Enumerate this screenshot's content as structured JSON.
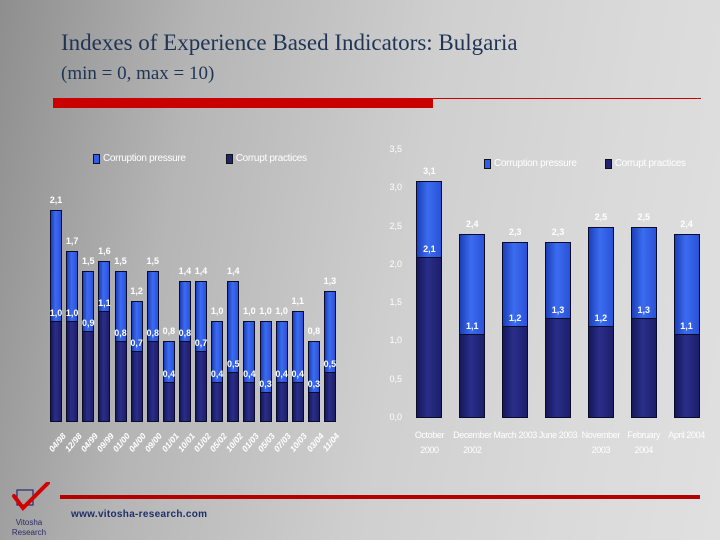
{
  "slide": {
    "title": "Indexes of Experience Based Indicators: Bulgaria",
    "subtitle": "(min = 0, max = 10)",
    "footer_url": "www.vitosha-research.com",
    "logo_line1": "Vitosha",
    "logo_line2": "Research",
    "colors": {
      "accent_red": "#c80000",
      "title_blue": "#1f3556",
      "series_light": "#2f5fe8",
      "series_dark": "#20236e"
    }
  },
  "chart_data": [
    {
      "type": "bar",
      "title": "",
      "legend": [
        "Corruption pressure",
        "Corrupt practices"
      ],
      "legend_position": "top",
      "categories": [
        "04/98",
        "12/98",
        "04/99",
        "09/99",
        "01/00",
        "04/00",
        "09/00",
        "01/01",
        "10/01",
        "01/02",
        "05/02",
        "10/02",
        "01/03",
        "05/03",
        "07/03",
        "10/03",
        "03/04",
        "11/04"
      ],
      "series": [
        {
          "name": "Corruption pressure",
          "values": [
            2.1,
            1.7,
            1.5,
            1.6,
            1.5,
            1.2,
            1.5,
            0.8,
            1.4,
            1.4,
            1.0,
            1.4,
            1.0,
            1.0,
            1.0,
            1.1,
            0.8,
            1.3
          ]
        },
        {
          "name": "Corrupt practices",
          "values": [
            1.0,
            1.0,
            0.9,
            1.1,
            0.8,
            0.7,
            0.8,
            0.4,
            0.8,
            0.7,
            0.4,
            0.5,
            0.4,
            0.3,
            0.4,
            0.4,
            0.3,
            0.5
          ]
        }
      ],
      "labels_pressure": [
        "2,1",
        "1,7",
        "1,5",
        "1,6",
        "1,5",
        "1,2",
        "1,5",
        "0,8",
        "1,4",
        "1,4",
        "1,0",
        "1,4",
        "1,0",
        "1,0",
        "1,0",
        "1,1",
        "0,8",
        "1,3"
      ],
      "labels_practices": [
        "1,0",
        "1,0",
        "0,9",
        "1,1",
        "0,8",
        "0,7",
        "0,8",
        "0,4",
        "0,8",
        "0,7",
        "0,4",
        "0,5",
        "0,4",
        "0,3",
        "0,4",
        "0,4",
        "0,3",
        "0,5"
      ],
      "xlabel": "",
      "ylabel": "",
      "ylim": [
        0,
        2.3
      ],
      "grid": false,
      "overlap": true
    },
    {
      "type": "bar",
      "title": "",
      "legend": [
        "Corruption pressure",
        "Corrupt practices"
      ],
      "legend_position": "top",
      "categories": [
        "October 2000",
        "December 2002",
        "March 2003",
        "June 2003",
        "November 2003",
        "February 2004",
        "April 2004"
      ],
      "category_lines": [
        [
          "October",
          "2000"
        ],
        [
          "December",
          "2002"
        ],
        [
          "March 2003",
          ""
        ],
        [
          "June 2003",
          ""
        ],
        [
          "November",
          "2003"
        ],
        [
          "February",
          "2004"
        ],
        [
          "April 2004",
          ""
        ]
      ],
      "series": [
        {
          "name": "Corruption pressure",
          "values": [
            3.1,
            2.4,
            2.3,
            2.3,
            2.5,
            2.5,
            2.4
          ]
        },
        {
          "name": "Corrupt practices",
          "values": [
            2.1,
            1.1,
            1.2,
            1.3,
            1.2,
            1.3,
            1.1
          ]
        }
      ],
      "labels_pressure": [
        "3,1",
        "2,4",
        "2,3",
        "2,3",
        "2,5",
        "2,5",
        "2,4"
      ],
      "labels_practices": [
        "2,1",
        "1,1",
        "1,2",
        "1,3",
        "1,2",
        "1,3",
        "1,1"
      ],
      "yticks": [
        "3,5",
        "3,0",
        "2,5",
        "2,0",
        "1,5",
        "1,0",
        "0,5",
        "0,0"
      ],
      "xlabel": "",
      "ylabel": "",
      "ylim": [
        0,
        3.5
      ],
      "grid": false,
      "overlap": true
    }
  ]
}
